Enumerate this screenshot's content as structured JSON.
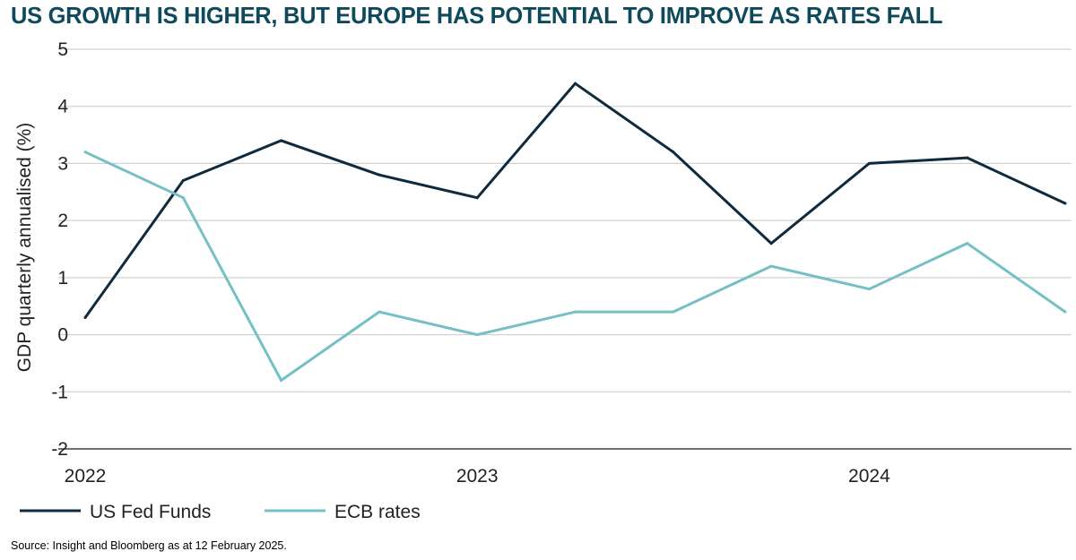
{
  "title": "US GROWTH IS HIGHER, BUT EUROPE HAS POTENTIAL TO IMPROVE AS RATES FALL",
  "source": "Source: Insight and Bloomberg as at 12 February 2025.",
  "colors": {
    "title": "#0e4a5c",
    "text": "#222222",
    "grid": "#c8c8c8",
    "axis": "#444444"
  },
  "chart_data": {
    "type": "line",
    "title": "US GROWTH IS HIGHER, BUT EUROPE HAS POTENTIAL TO IMPROVE AS RATES FALL",
    "xlabel": "",
    "ylabel": "GDP quarterly annualised (%)",
    "ylim": [
      -2,
      5
    ],
    "yticks": [
      5,
      4,
      3,
      2,
      1,
      0,
      -1,
      -2
    ],
    "grid": true,
    "legend_position": "bottom-left",
    "x_tick_labels": [
      {
        "label": "2022",
        "index": 0
      },
      {
        "label": "2023",
        "index": 4
      },
      {
        "label": "2024",
        "index": 8
      }
    ],
    "x": [
      "Q1 2022",
      "Q2 2022",
      "Q3 2022",
      "Q4 2022",
      "Q1 2023",
      "Q2 2023",
      "Q3 2023",
      "Q4 2023",
      "Q1 2024",
      "Q2 2024",
      "Q3 2024"
    ],
    "series": [
      {
        "name": "US Fed Funds",
        "color": "#0f2a3d",
        "values": [
          0.3,
          2.7,
          3.4,
          2.8,
          2.4,
          4.4,
          3.2,
          1.6,
          3.0,
          3.1,
          2.3
        ]
      },
      {
        "name": "ECB rates",
        "color": "#74c0c4",
        "values": [
          3.2,
          2.4,
          -0.8,
          0.4,
          0.0,
          0.4,
          0.4,
          1.2,
          0.8,
          1.6,
          0.4
        ]
      }
    ]
  }
}
